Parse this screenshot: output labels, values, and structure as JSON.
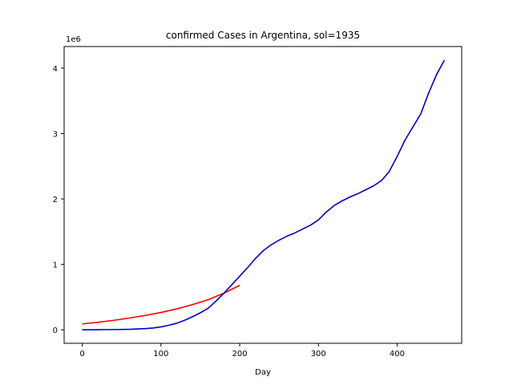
{
  "chart_data": {
    "type": "line",
    "title": "confirmed Cases in Argentina, sol=1935",
    "xlabel": "Day",
    "ylabel": "",
    "y_offset_label": "1e6",
    "xlim": [
      -23,
      482
    ],
    "ylim": [
      -0.206,
      4.33
    ],
    "x_ticks": [
      0,
      100,
      200,
      300,
      400
    ],
    "y_ticks": [
      0,
      1,
      2,
      3,
      4
    ],
    "grid": false,
    "series": [
      {
        "color": "#ff0000",
        "x": [
          0,
          20,
          40,
          60,
          80,
          100,
          120,
          140,
          160,
          180,
          200
        ],
        "y": [
          0.09,
          0.115,
          0.145,
          0.18,
          0.22,
          0.265,
          0.32,
          0.385,
          0.46,
          0.56,
          0.68
        ]
      },
      {
        "color": "#0000cc",
        "x": [
          0,
          20,
          40,
          60,
          80,
          90,
          100,
          110,
          120,
          130,
          140,
          150,
          160,
          170,
          180,
          190,
          200,
          210,
          220,
          230,
          240,
          250,
          260,
          270,
          280,
          290,
          300,
          310,
          320,
          330,
          340,
          350,
          360,
          370,
          380,
          390,
          400,
          410,
          420,
          430,
          440,
          450,
          460
        ],
        "y": [
          0.0,
          0.002,
          0.004,
          0.008,
          0.018,
          0.028,
          0.045,
          0.07,
          0.1,
          0.145,
          0.2,
          0.26,
          0.33,
          0.44,
          0.56,
          0.69,
          0.82,
          0.95,
          1.09,
          1.21,
          1.3,
          1.37,
          1.43,
          1.48,
          1.54,
          1.6,
          1.68,
          1.8,
          1.9,
          1.97,
          2.03,
          2.08,
          2.14,
          2.2,
          2.28,
          2.42,
          2.65,
          2.9,
          3.1,
          3.3,
          3.62,
          3.9,
          4.12
        ]
      }
    ]
  }
}
